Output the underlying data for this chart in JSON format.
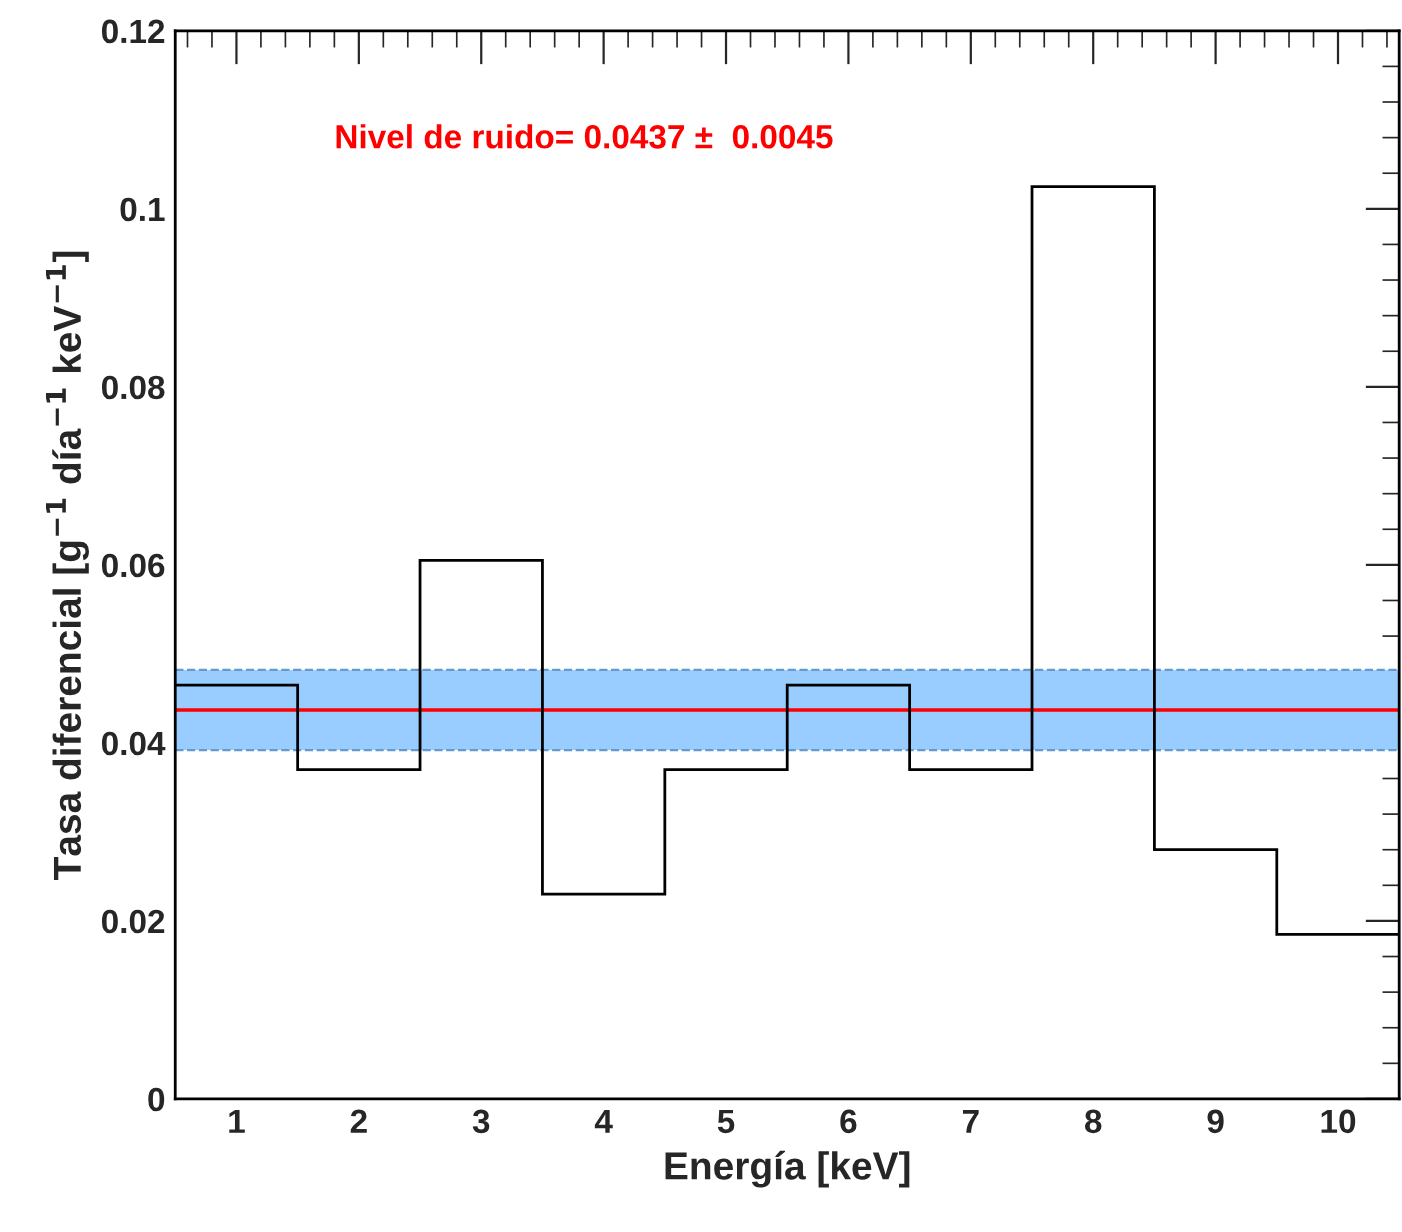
{
  "chart_data": {
    "type": "histogram",
    "xlabel": "Energía [keV]",
    "ylabel": "Tasa diferencial [g$^{−1}$ día$^{−1}$ keV$^{−1}$]",
    "bins": [
      0.5,
      1.5,
      2.5,
      3.5,
      4.5,
      5.5,
      6.5,
      7.5,
      8.5,
      9.5,
      10.5
    ],
    "values": [
      0.0465,
      0.037,
      0.0605,
      0.023,
      0.037,
      0.0465,
      0.037,
      0.1025,
      0.028,
      0.0185
    ],
    "color": "#000000",
    "xlim": [
      0.5,
      10.5
    ],
    "xticks": [
      1,
      2,
      3,
      4,
      5,
      6,
      7,
      8,
      9,
      10
    ],
    "ylim": [
      0,
      0.12
    ],
    "yticks": [
      0,
      0.02,
      0.04,
      0.06,
      0.08,
      0.1,
      0.12
    ],
    "ref_lines": [
      {
        "axis": "y",
        "value": 0.0437,
        "color": "#ff0000",
        "line_style": "solid"
      },
      {
        "axis": "y",
        "value": 0.0392,
        "color": "#6699cc",
        "line_style": "dashed"
      },
      {
        "axis": "y",
        "value": 0.0482,
        "color": "#6699cc",
        "line_style": "dashed"
      }
    ],
    "bands": [
      {
        "axis": "y",
        "from": 0.0392,
        "to": 0.0482,
        "color": "#99ccff"
      }
    ],
    "annotations": [
      "Nivel de ruido= 0.0437 ±  0.0045"
    ],
    "grid": false
  }
}
